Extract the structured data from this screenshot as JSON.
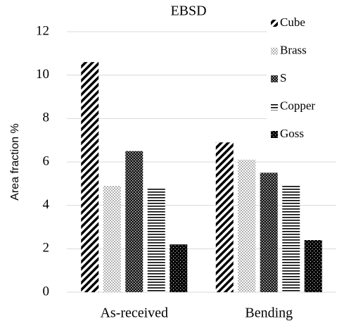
{
  "chart_data": {
    "type": "bar",
    "title": "EBSD",
    "y_label": "Area fraction %",
    "categories": [
      "As-received",
      "Bending"
    ],
    "series": [
      {
        "name": "Cube",
        "color": "#000000",
        "pattern": "diagonal",
        "values": [
          10.6,
          6.9
        ]
      },
      {
        "name": "Brass",
        "color": "#888888",
        "pattern": "light-dots",
        "values": [
          4.9,
          6.1
        ]
      },
      {
        "name": "S",
        "color": "#222222",
        "pattern": "checker",
        "values": [
          6.5,
          5.5
        ]
      },
      {
        "name": "Copper",
        "color": "#000000",
        "pattern": "horizontal",
        "values": [
          4.8,
          4.9
        ]
      },
      {
        "name": "Goss",
        "color": "#000000",
        "pattern": "dark-dots",
        "values": [
          2.2,
          2.4
        ]
      }
    ],
    "ylim": [
      0,
      12
    ],
    "yticks": [
      0,
      2,
      4,
      6,
      8,
      10,
      12
    ],
    "grid": true,
    "legend": "upper right"
  }
}
